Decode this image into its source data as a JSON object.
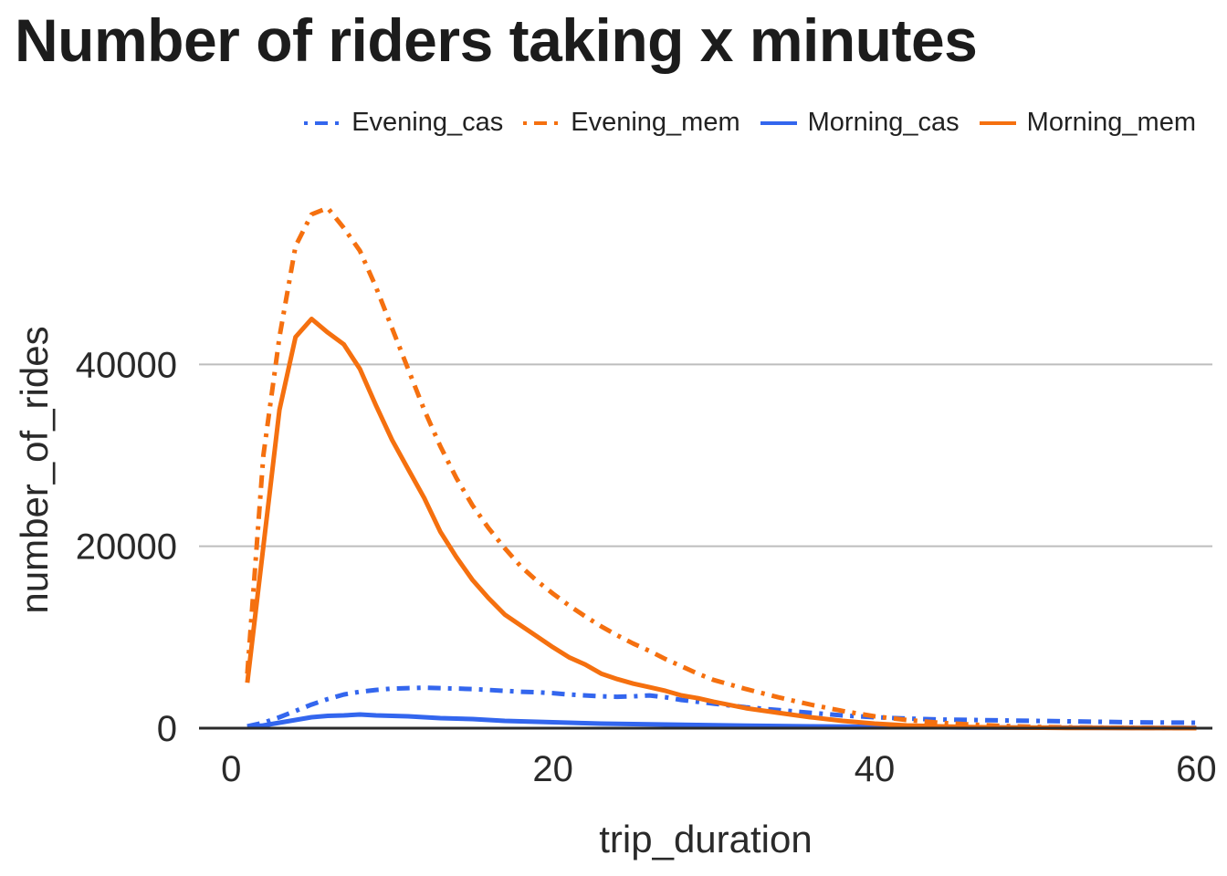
{
  "chart_data": {
    "type": "line",
    "title": "Number of riders taking x minutes",
    "xlabel": "trip_duration",
    "ylabel": "number_of_rides",
    "xlim": [
      -2,
      61
    ],
    "ylim": [
      0,
      60000
    ],
    "xticks": [
      0,
      20,
      40,
      60
    ],
    "yticks": [
      0,
      20000,
      40000
    ],
    "grid": true,
    "legend": "top-right",
    "series": [
      {
        "name": "Evening_cas",
        "color": "#3366ee",
        "dash": "14 8 4 8",
        "x": [
          1,
          2,
          3,
          4,
          5,
          6,
          7,
          8,
          9,
          10,
          11,
          12,
          13,
          14,
          15,
          16,
          17,
          18,
          19,
          20,
          21,
          22,
          23,
          24,
          25,
          26,
          27,
          28,
          29,
          30,
          32,
          34,
          36,
          38,
          40,
          42,
          44,
          46,
          48,
          50,
          52,
          54,
          56,
          58,
          60
        ],
        "y": [
          200,
          600,
          1200,
          1900,
          2600,
          3200,
          3700,
          4000,
          4200,
          4350,
          4400,
          4450,
          4400,
          4350,
          4300,
          4200,
          4100,
          4000,
          3950,
          3850,
          3700,
          3600,
          3500,
          3450,
          3500,
          3600,
          3400,
          3100,
          2900,
          2700,
          2300,
          2000,
          1700,
          1400,
          1200,
          1050,
          950,
          900,
          850,
          800,
          750,
          700,
          650,
          620,
          600
        ]
      },
      {
        "name": "Evening_mem",
        "color": "#f5700f",
        "dash": "14 8 4 8",
        "x": [
          1,
          2,
          3,
          4,
          5,
          6,
          7,
          8,
          9,
          10,
          11,
          12,
          13,
          14,
          15,
          16,
          17,
          18,
          19,
          20,
          21,
          22,
          23,
          24,
          25,
          26,
          27,
          28,
          29,
          30,
          32,
          34,
          36,
          38,
          40,
          42,
          44,
          46,
          48,
          50,
          52,
          54,
          56,
          58,
          60
        ],
        "y": [
          6000,
          30000,
          43000,
          53000,
          56500,
          57200,
          55000,
          52500,
          48500,
          44000,
          39500,
          35000,
          31000,
          27500,
          24500,
          22000,
          19800,
          17800,
          16200,
          14800,
          13500,
          12300,
          11200,
          10200,
          9300,
          8500,
          7600,
          6800,
          6000,
          5300,
          4300,
          3400,
          2600,
          1900,
          1300,
          900,
          600,
          400,
          250,
          150,
          100,
          60,
          40,
          20,
          10
        ]
      },
      {
        "name": "Morning_cas",
        "color": "#3366ee",
        "dash": "",
        "x": [
          1,
          2,
          3,
          4,
          5,
          6,
          7,
          8,
          9,
          10,
          11,
          12,
          13,
          14,
          15,
          16,
          17,
          18,
          19,
          20,
          21,
          22,
          23,
          24,
          25,
          26,
          27,
          28,
          29,
          30,
          32,
          34,
          36,
          38,
          40,
          42,
          44,
          46,
          48,
          50,
          52,
          54,
          56,
          58,
          60
        ],
        "y": [
          100,
          300,
          600,
          900,
          1200,
          1350,
          1400,
          1500,
          1400,
          1350,
          1300,
          1200,
          1100,
          1050,
          1000,
          900,
          800,
          750,
          700,
          650,
          600,
          550,
          500,
          480,
          450,
          420,
          400,
          380,
          350,
          320,
          280,
          240,
          200,
          170,
          140,
          120,
          100,
          80,
          70,
          60,
          50,
          40,
          35,
          30,
          25
        ]
      },
      {
        "name": "Morning_mem",
        "color": "#f5700f",
        "dash": "",
        "x": [
          1,
          2,
          3,
          4,
          5,
          6,
          7,
          8,
          9,
          10,
          11,
          12,
          13,
          14,
          15,
          16,
          17,
          18,
          19,
          20,
          21,
          22,
          23,
          24,
          25,
          26,
          27,
          28,
          29,
          30,
          32,
          34,
          36,
          38,
          40,
          42,
          44,
          46,
          48,
          50,
          52,
          54,
          56,
          58,
          60
        ],
        "y": [
          5000,
          20000,
          35000,
          43000,
          45000,
          43500,
          42200,
          39500,
          35500,
          31700,
          28500,
          25300,
          21600,
          18800,
          16300,
          14300,
          12500,
          11300,
          10100,
          8900,
          7800,
          7000,
          6000,
          5400,
          4900,
          4500,
          4100,
          3600,
          3300,
          2900,
          2200,
          1700,
          1200,
          800,
          500,
          300,
          200,
          120,
          80,
          50,
          30,
          20,
          15,
          10,
          5
        ]
      }
    ]
  }
}
